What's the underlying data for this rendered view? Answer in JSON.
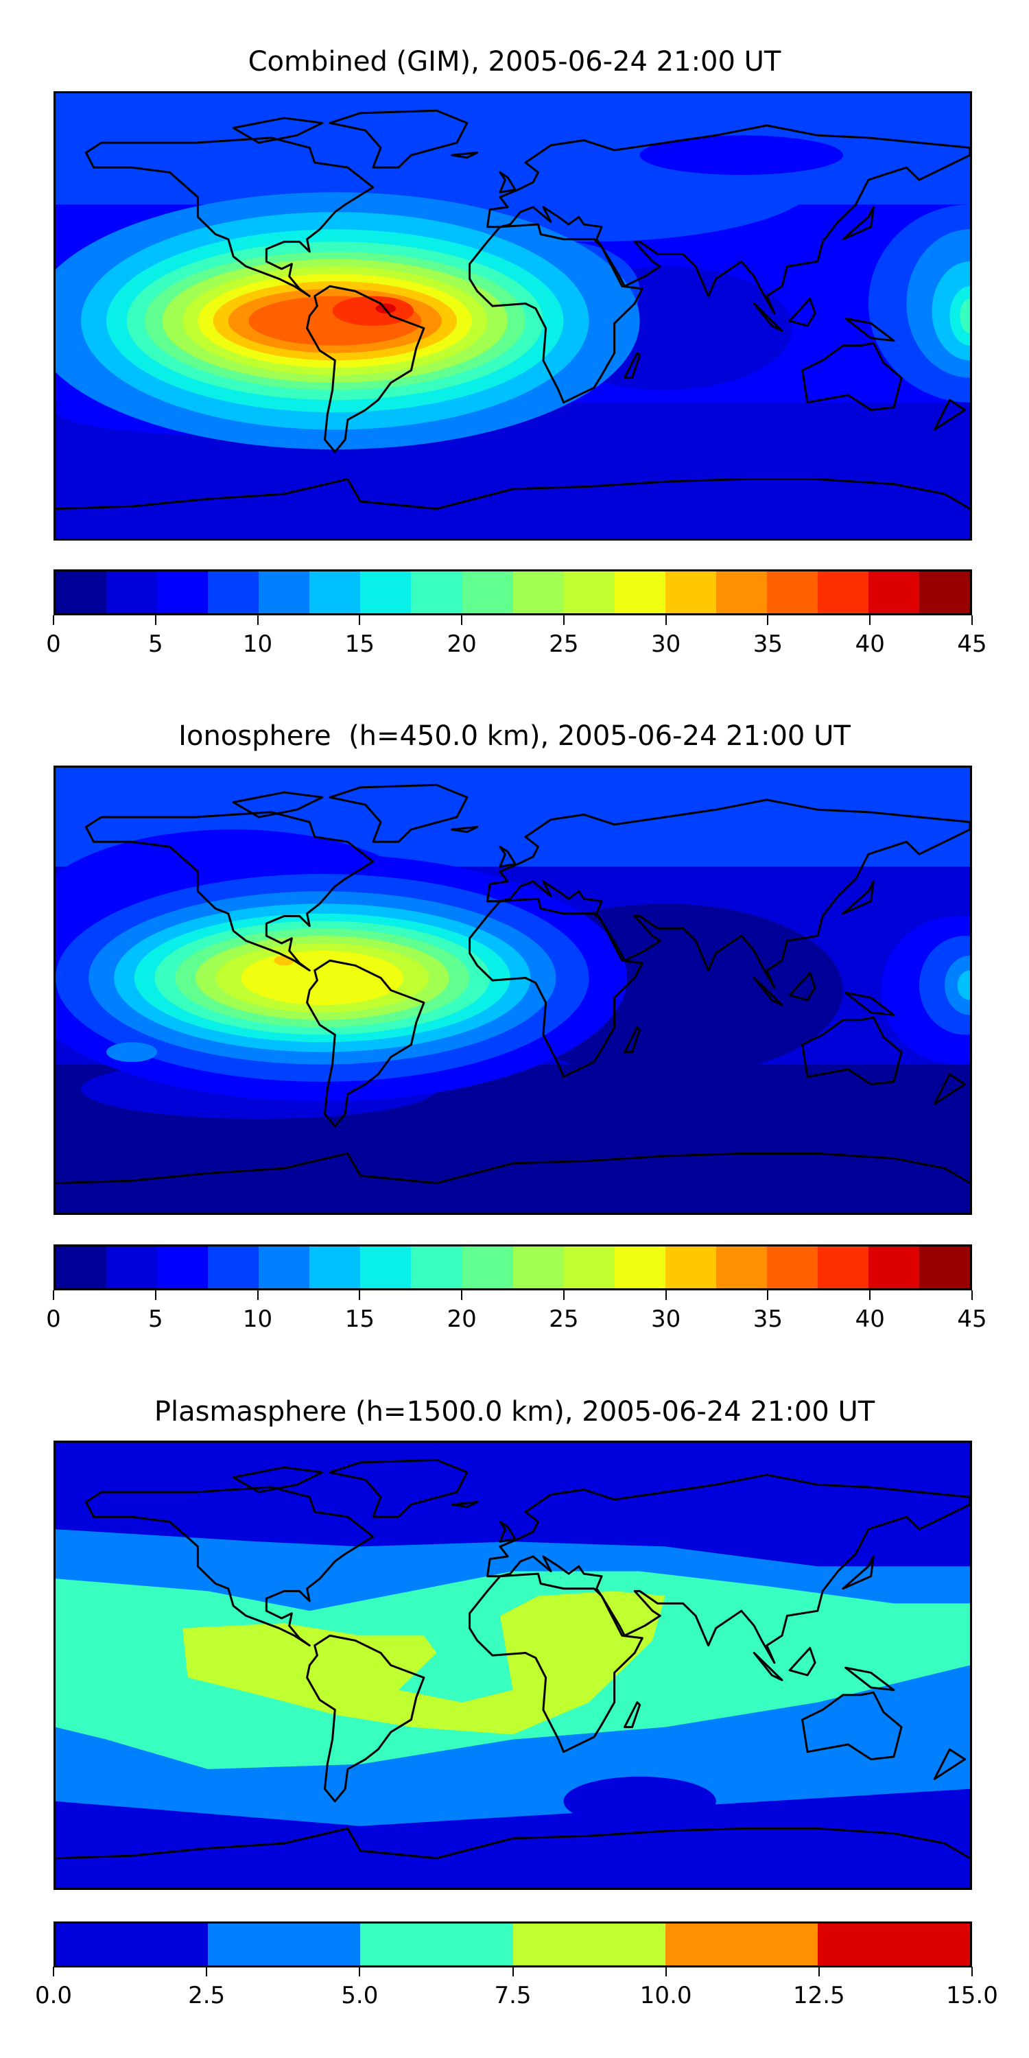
{
  "chart_data": [
    {
      "type": "heatmap",
      "title": "Combined (GIM), 2005-06-24 21:00 UT",
      "colorbar": {
        "levels": [
          0,
          2.5,
          5,
          7.5,
          10,
          12.5,
          15,
          17.5,
          20,
          22.5,
          25,
          27.5,
          30,
          32.5,
          35,
          37.5,
          40,
          42.5,
          45
        ],
        "colors": [
          "#000099",
          "#0000d8",
          "#0000ff",
          "#0040ff",
          "#0080ff",
          "#00c0ff",
          "#08f0e8",
          "#38ffc0",
          "#60ff90",
          "#a0ff50",
          "#c0ff30",
          "#f0ff10",
          "#ffc800",
          "#ff9000",
          "#ff6000",
          "#ff3000",
          "#dd0000",
          "#990000"
        ],
        "ticks": [
          "0",
          "5",
          "10",
          "15",
          "20",
          "25",
          "30",
          "35",
          "40",
          "45"
        ],
        "range": [
          0,
          45
        ]
      },
      "peak_region": "South America / equatorial Atlantic, ~37.5-40",
      "projection": "equirectangular, lon -180..180, lat -90..90"
    },
    {
      "type": "heatmap",
      "title": "Ionosphere  (h=450.0 km), 2005-06-24 21:00 UT",
      "colorbar": {
        "levels": [
          0,
          2.5,
          5,
          7.5,
          10,
          12.5,
          15,
          17.5,
          20,
          22.5,
          25,
          27.5,
          30,
          32.5,
          35,
          37.5,
          40,
          42.5,
          45
        ],
        "colors": [
          "#000099",
          "#0000d8",
          "#0000ff",
          "#0040ff",
          "#0080ff",
          "#00c0ff",
          "#08f0e8",
          "#38ffc0",
          "#60ff90",
          "#a0ff50",
          "#c0ff30",
          "#f0ff10",
          "#ffc800",
          "#ff9000",
          "#ff6000",
          "#ff3000",
          "#dd0000",
          "#990000"
        ],
        "ticks": [
          "0",
          "5",
          "10",
          "15",
          "20",
          "25",
          "30",
          "35",
          "40",
          "45"
        ],
        "range": [
          0,
          45
        ]
      },
      "peak_region": "northern South America, ~30-32.5"
    },
    {
      "type": "heatmap",
      "title": "Plasmasphere (h=1500.0 km), 2005-06-24 21:00 UT",
      "colorbar": {
        "levels": [
          0,
          2.5,
          5,
          7.5,
          10,
          12.5,
          15
        ],
        "colors": [
          "#0000dd",
          "#0080ff",
          "#38ffc0",
          "#c0ff30",
          "#ff9000",
          "#dd0000"
        ],
        "ticks": [
          "0.0",
          "2.5",
          "5.0",
          "7.5",
          "10.0",
          "12.5",
          "15.0"
        ],
        "range": [
          0,
          15
        ]
      },
      "peak_region": "tropical Atlantic / Africa, 7.5-10"
    }
  ]
}
